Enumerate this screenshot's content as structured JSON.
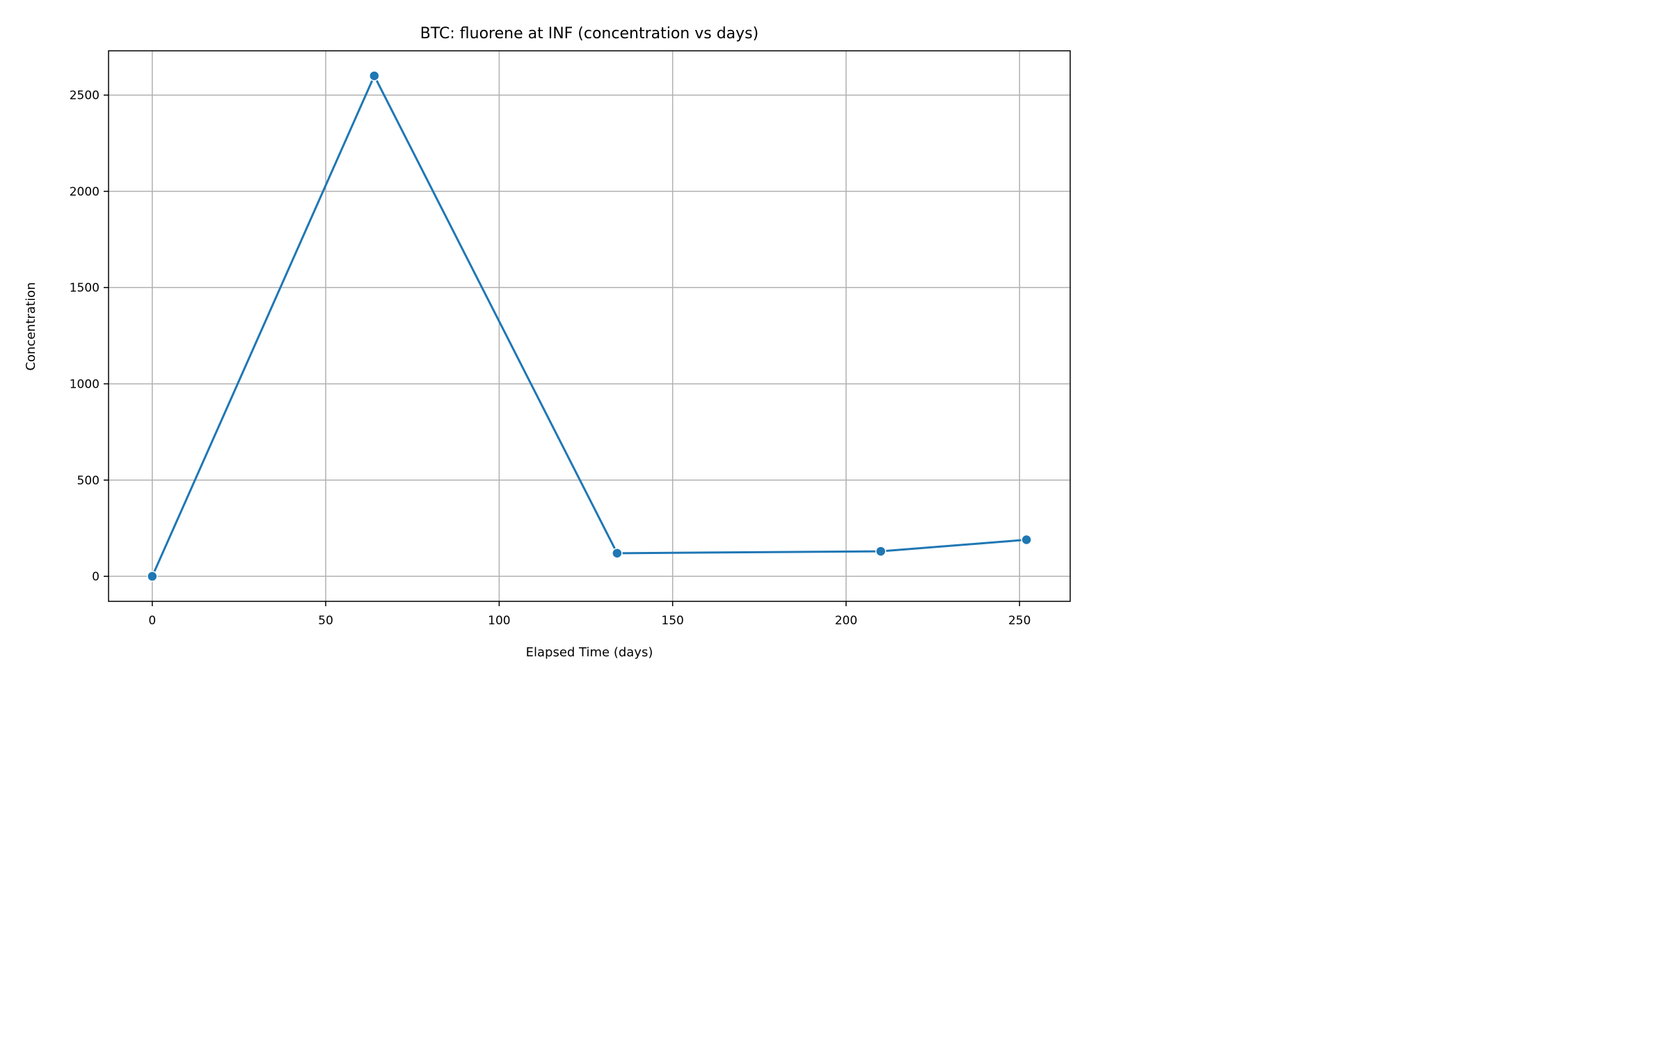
{
  "chart_data": {
    "type": "line",
    "title": "BTC: fluorene at INF (concentration vs days)",
    "xlabel": "Elapsed Time (days)",
    "ylabel": "Concentration",
    "xlim": [
      -12.6,
      264.6
    ],
    "ylim": [
      -130,
      2730
    ],
    "xticks": [
      0,
      50,
      100,
      150,
      200,
      250
    ],
    "yticks": [
      0,
      500,
      1000,
      1500,
      2000,
      2500
    ],
    "grid": true,
    "series": [
      {
        "color": "#1f77b4",
        "marker": "circle",
        "points": [
          {
            "x": 0,
            "y": 0
          },
          {
            "x": 64,
            "y": 2600
          },
          {
            "x": 134,
            "y": 120
          },
          {
            "x": 210,
            "y": 130
          },
          {
            "x": 252,
            "y": 190
          }
        ]
      }
    ]
  }
}
